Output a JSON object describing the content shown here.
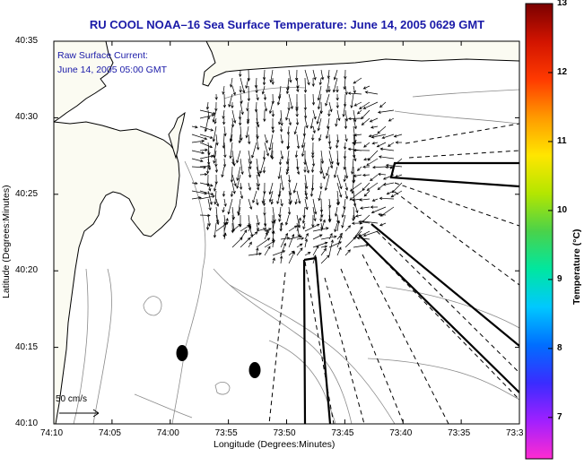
{
  "title": "RU COOL  NOAA–16  Sea Surface Temperature:  June 14, 2005 0629 GMT",
  "annotation": {
    "line1": "Raw Surface Current:",
    "line2": "June 14, 2005 05:00 GMT"
  },
  "scale": {
    "label": "50 cm/s"
  },
  "axes": {
    "xlabel": "Longitude (Degrees:Minutes)",
    "ylabel": "Latitude (Degrees:Minutes)",
    "xticks": [
      "74:10",
      "74:05",
      "74:00",
      "73:55",
      "73:50",
      "73:45",
      "73:40",
      "73:35",
      "73:3"
    ],
    "yticks": [
      "40:35",
      "40:30",
      "40:25",
      "40:20",
      "40:15",
      "40:10"
    ]
  },
  "colorbar": {
    "label": "Temperature (°C)",
    "ticks": [
      "13",
      "12",
      "11",
      "10",
      "9",
      "8",
      "7"
    ],
    "min": 6.4,
    "max": 13,
    "colors": [
      "#ff2bd0",
      "#a020ff",
      "#3a2cff",
      "#006eff",
      "#00c8ff",
      "#00e7a0",
      "#4ad24a",
      "#b4e600",
      "#ffe600",
      "#ff9a00",
      "#ff3a00",
      "#d21400",
      "#7a0000"
    ]
  },
  "chart_data": {
    "type": "map",
    "title": "RU COOL  NOAA–16  Sea Surface Temperature:  June 14, 2005 0629 GMT",
    "xlabel": "Longitude (Degrees:Minutes)",
    "ylabel": "Latitude (Degrees:Minutes)",
    "xlim": [
      "74:10",
      "73:30"
    ],
    "ylim": [
      "40:10",
      "40:35"
    ],
    "colorbar_range_c": [
      6.4,
      13
    ],
    "current_field_time": "June 14, 2005 05:00 GMT",
    "vector_scale": "50 cm/s"
  }
}
